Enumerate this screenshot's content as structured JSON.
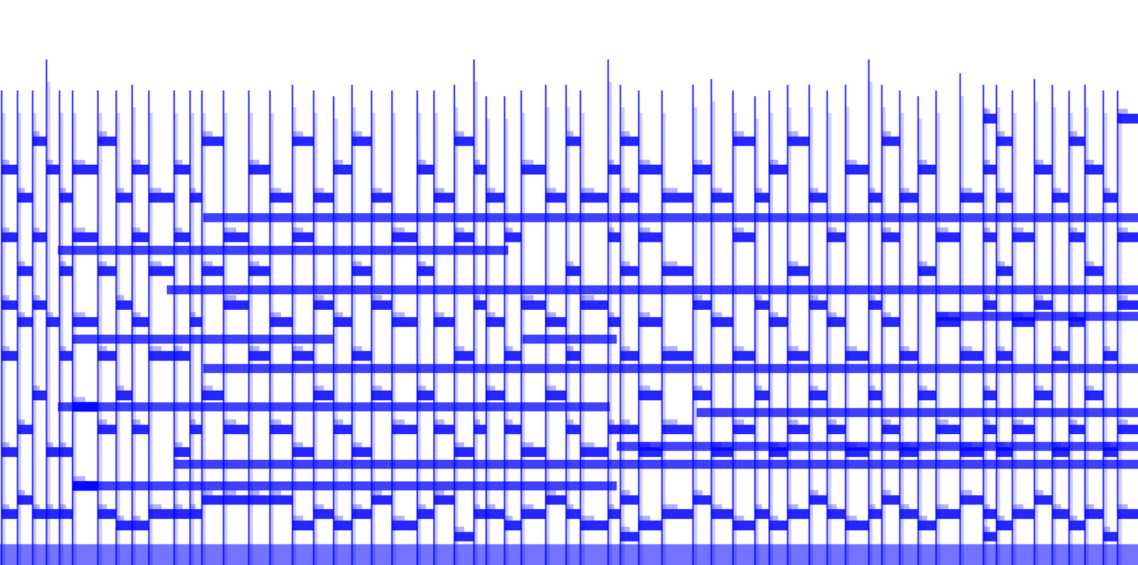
{
  "chart_data": {
    "type": "spectrogram",
    "color": "#0000ff",
    "tick_labels": false,
    "grid": false,
    "xlim": [
      0,
      1568
    ],
    "ylim": [
      0,
      100
    ],
    "noise_floor": 3.7,
    "bands": [
      [
        240,
        1568,
        17.8
      ],
      [
        100,
        850,
        14
      ],
      [
        80,
        840,
        28
      ],
      [
        280,
        1568,
        34.8
      ],
      [
        100,
        460,
        40
      ],
      [
        720,
        850,
        40
      ],
      [
        80,
        700,
        55.7
      ],
      [
        280,
        1568,
        61.5
      ],
      [
        230,
        1568,
        48.7
      ],
      [
        960,
        1568,
        27
      ],
      [
        850,
        1568,
        21
      ],
      [
        1290,
        1568,
        44
      ]
    ],
    "onsets": [
      {
        "t": 2,
        "top": 84,
        "pitches": [
          9,
          20,
          37,
          46,
          58,
          70
        ]
      },
      {
        "t": 24,
        "top": 84,
        "pitches": [
          11.5,
          24,
          43,
          52,
          65
        ]
      },
      {
        "t": 45,
        "top": 84,
        "pitches": [
          9,
          30,
          46,
          58,
          75
        ]
      },
      {
        "t": 64,
        "top": 89.5,
        "pitches": [
          9,
          20,
          43,
          70
        ]
      },
      {
        "t": 82,
        "top": 84,
        "pitches": [
          9,
          20,
          37,
          52,
          65
        ]
      },
      {
        "t": 100,
        "top": 84,
        "pitches": [
          14,
          28,
          43,
          58,
          70
        ]
      },
      {
        "t": 135,
        "top": 84,
        "pitches": [
          9,
          24,
          37,
          52,
          75
        ]
      },
      {
        "t": 160,
        "top": 84,
        "pitches": [
          7,
          30,
          46,
          65
        ]
      },
      {
        "t": 182,
        "top": 85,
        "pitches": [
          7,
          24,
          43,
          58,
          70
        ]
      },
      {
        "t": 205,
        "top": 84,
        "pitches": [
          9,
          37,
          52,
          65
        ]
      },
      {
        "t": 240,
        "top": 84,
        "pitches": [
          9,
          20,
          37,
          58,
          70
        ]
      },
      {
        "t": 262,
        "top": 84,
        "pitches": [
          9,
          24,
          43,
          65
        ]
      },
      {
        "t": 278,
        "top": 84,
        "pitches": [
          11.5,
          30,
          52,
          75
        ]
      },
      {
        "t": 308,
        "top": 84,
        "pitches": [
          11.5,
          24,
          46,
          58
        ]
      },
      {
        "t": 343,
        "top": 84,
        "pitches": [
          11.5,
          37,
          52,
          70
        ]
      },
      {
        "t": 372,
        "top": 84,
        "pitches": [
          11.5,
          24,
          43,
          65
        ]
      },
      {
        "t": 403,
        "top": 85,
        "pitches": [
          7,
          20,
          37,
          58,
          75
        ]
      },
      {
        "t": 432,
        "top": 84,
        "pitches": [
          9,
          30,
          46,
          65
        ]
      },
      {
        "t": 460,
        "top": 83,
        "pitches": [
          7,
          24,
          43,
          70
        ]
      },
      {
        "t": 485,
        "top": 85,
        "pitches": [
          9,
          20,
          37,
          52,
          75
        ]
      },
      {
        "t": 512,
        "top": 84,
        "pitches": [
          11.5,
          30,
          46,
          65
        ]
      },
      {
        "t": 540,
        "top": 84,
        "pitches": [
          7,
          24,
          43,
          58
        ]
      },
      {
        "t": 575,
        "top": 84,
        "pitches": [
          9,
          30,
          52,
          70
        ]
      },
      {
        "t": 598,
        "top": 84,
        "pitches": [
          11.5,
          24,
          43,
          65
        ]
      },
      {
        "t": 626,
        "top": 85,
        "pitches": [
          5,
          20,
          37,
          58,
          75
        ]
      },
      {
        "t": 653,
        "top": 89.5,
        "pitches": [
          9,
          24,
          46,
          70
        ]
      },
      {
        "t": 670,
        "top": 83,
        "pitches": [
          9,
          30,
          43,
          65
        ]
      },
      {
        "t": 695,
        "top": 83,
        "pitches": [
          7,
          24,
          37,
          58
        ]
      },
      {
        "t": 718,
        "top": 84,
        "pitches": [
          9,
          20,
          46,
          70
        ]
      },
      {
        "t": 752,
        "top": 85,
        "pitches": [
          11.5,
          30,
          43,
          65
        ]
      },
      {
        "t": 780,
        "top": 85,
        "pitches": [
          9,
          24,
          37,
          52,
          75
        ]
      },
      {
        "t": 800,
        "top": 84,
        "pitches": [
          7,
          20,
          46,
          65
        ]
      },
      {
        "t": 838,
        "top": 89.5,
        "pitches": [
          9,
          24,
          43,
          58,
          70
        ]
      },
      {
        "t": 855,
        "top": 85,
        "pitches": [
          5,
          11.5,
          24,
          37,
          52,
          65,
          75
        ]
      },
      {
        "t": 880,
        "top": 84,
        "pitches": [
          7,
          20,
          30,
          43,
          58,
          70
        ]
      },
      {
        "t": 912,
        "top": 84,
        "pitches": [
          9,
          24,
          37,
          52,
          65
        ]
      },
      {
        "t": 955,
        "top": 85,
        "pitches": [
          11.5,
          30,
          46,
          70
        ]
      },
      {
        "t": 980,
        "top": 86,
        "pitches": [
          9,
          20,
          43,
          65
        ]
      },
      {
        "t": 1010,
        "top": 84,
        "pitches": [
          7,
          24,
          37,
          58,
          75
        ]
      },
      {
        "t": 1040,
        "top": 83,
        "pitches": [
          9,
          30,
          46,
          65
        ]
      },
      {
        "t": 1060,
        "top": 84,
        "pitches": [
          7,
          20,
          43,
          70
        ]
      },
      {
        "t": 1085,
        "top": 85,
        "pitches": [
          9,
          24,
          37,
          52,
          75
        ]
      },
      {
        "t": 1115,
        "top": 85,
        "pitches": [
          11.5,
          30,
          46,
          65
        ]
      },
      {
        "t": 1140,
        "top": 84,
        "pitches": [
          9,
          24,
          43,
          58
        ]
      },
      {
        "t": 1165,
        "top": 85,
        "pitches": [
          7,
          20,
          37,
          70
        ]
      },
      {
        "t": 1197,
        "top": 89.5,
        "pitches": [
          9,
          30,
          46,
          65
        ]
      },
      {
        "t": 1215,
        "top": 85,
        "pitches": [
          11.5,
          24,
          43,
          58,
          75
        ]
      },
      {
        "t": 1240,
        "top": 84,
        "pitches": [
          9,
          20,
          37,
          65
        ]
      },
      {
        "t": 1265,
        "top": 83,
        "pitches": [
          7,
          30,
          52,
          70
        ]
      },
      {
        "t": 1290,
        "top": 84,
        "pitches": [
          9,
          24,
          43,
          58
        ]
      },
      {
        "t": 1323,
        "top": 87,
        "pitches": [
          11.5,
          20,
          37,
          65
        ]
      },
      {
        "t": 1355,
        "top": 85,
        "pitches": [
          5,
          9,
          24,
          30,
          46,
          58,
          70,
          79
        ]
      },
      {
        "t": 1373,
        "top": 85,
        "pitches": [
          7,
          20,
          37,
          52,
          65,
          75
        ]
      },
      {
        "t": 1395,
        "top": 84,
        "pitches": [
          9,
          24,
          43,
          58
        ]
      },
      {
        "t": 1425,
        "top": 86,
        "pitches": [
          11.5,
          30,
          46,
          70
        ]
      },
      {
        "t": 1450,
        "top": 85,
        "pitches": [
          9,
          20,
          37,
          65
        ]
      },
      {
        "t": 1473,
        "top": 84,
        "pitches": [
          7,
          24,
          43,
          58,
          75
        ]
      },
      {
        "t": 1495,
        "top": 85,
        "pitches": [
          9,
          30,
          52,
          70
        ]
      },
      {
        "t": 1520,
        "top": 84,
        "pitches": [
          5,
          20,
          37,
          65
        ]
      },
      {
        "t": 1540,
        "top": 84,
        "pitches": [
          9,
          24,
          46,
          58,
          79
        ]
      }
    ]
  }
}
